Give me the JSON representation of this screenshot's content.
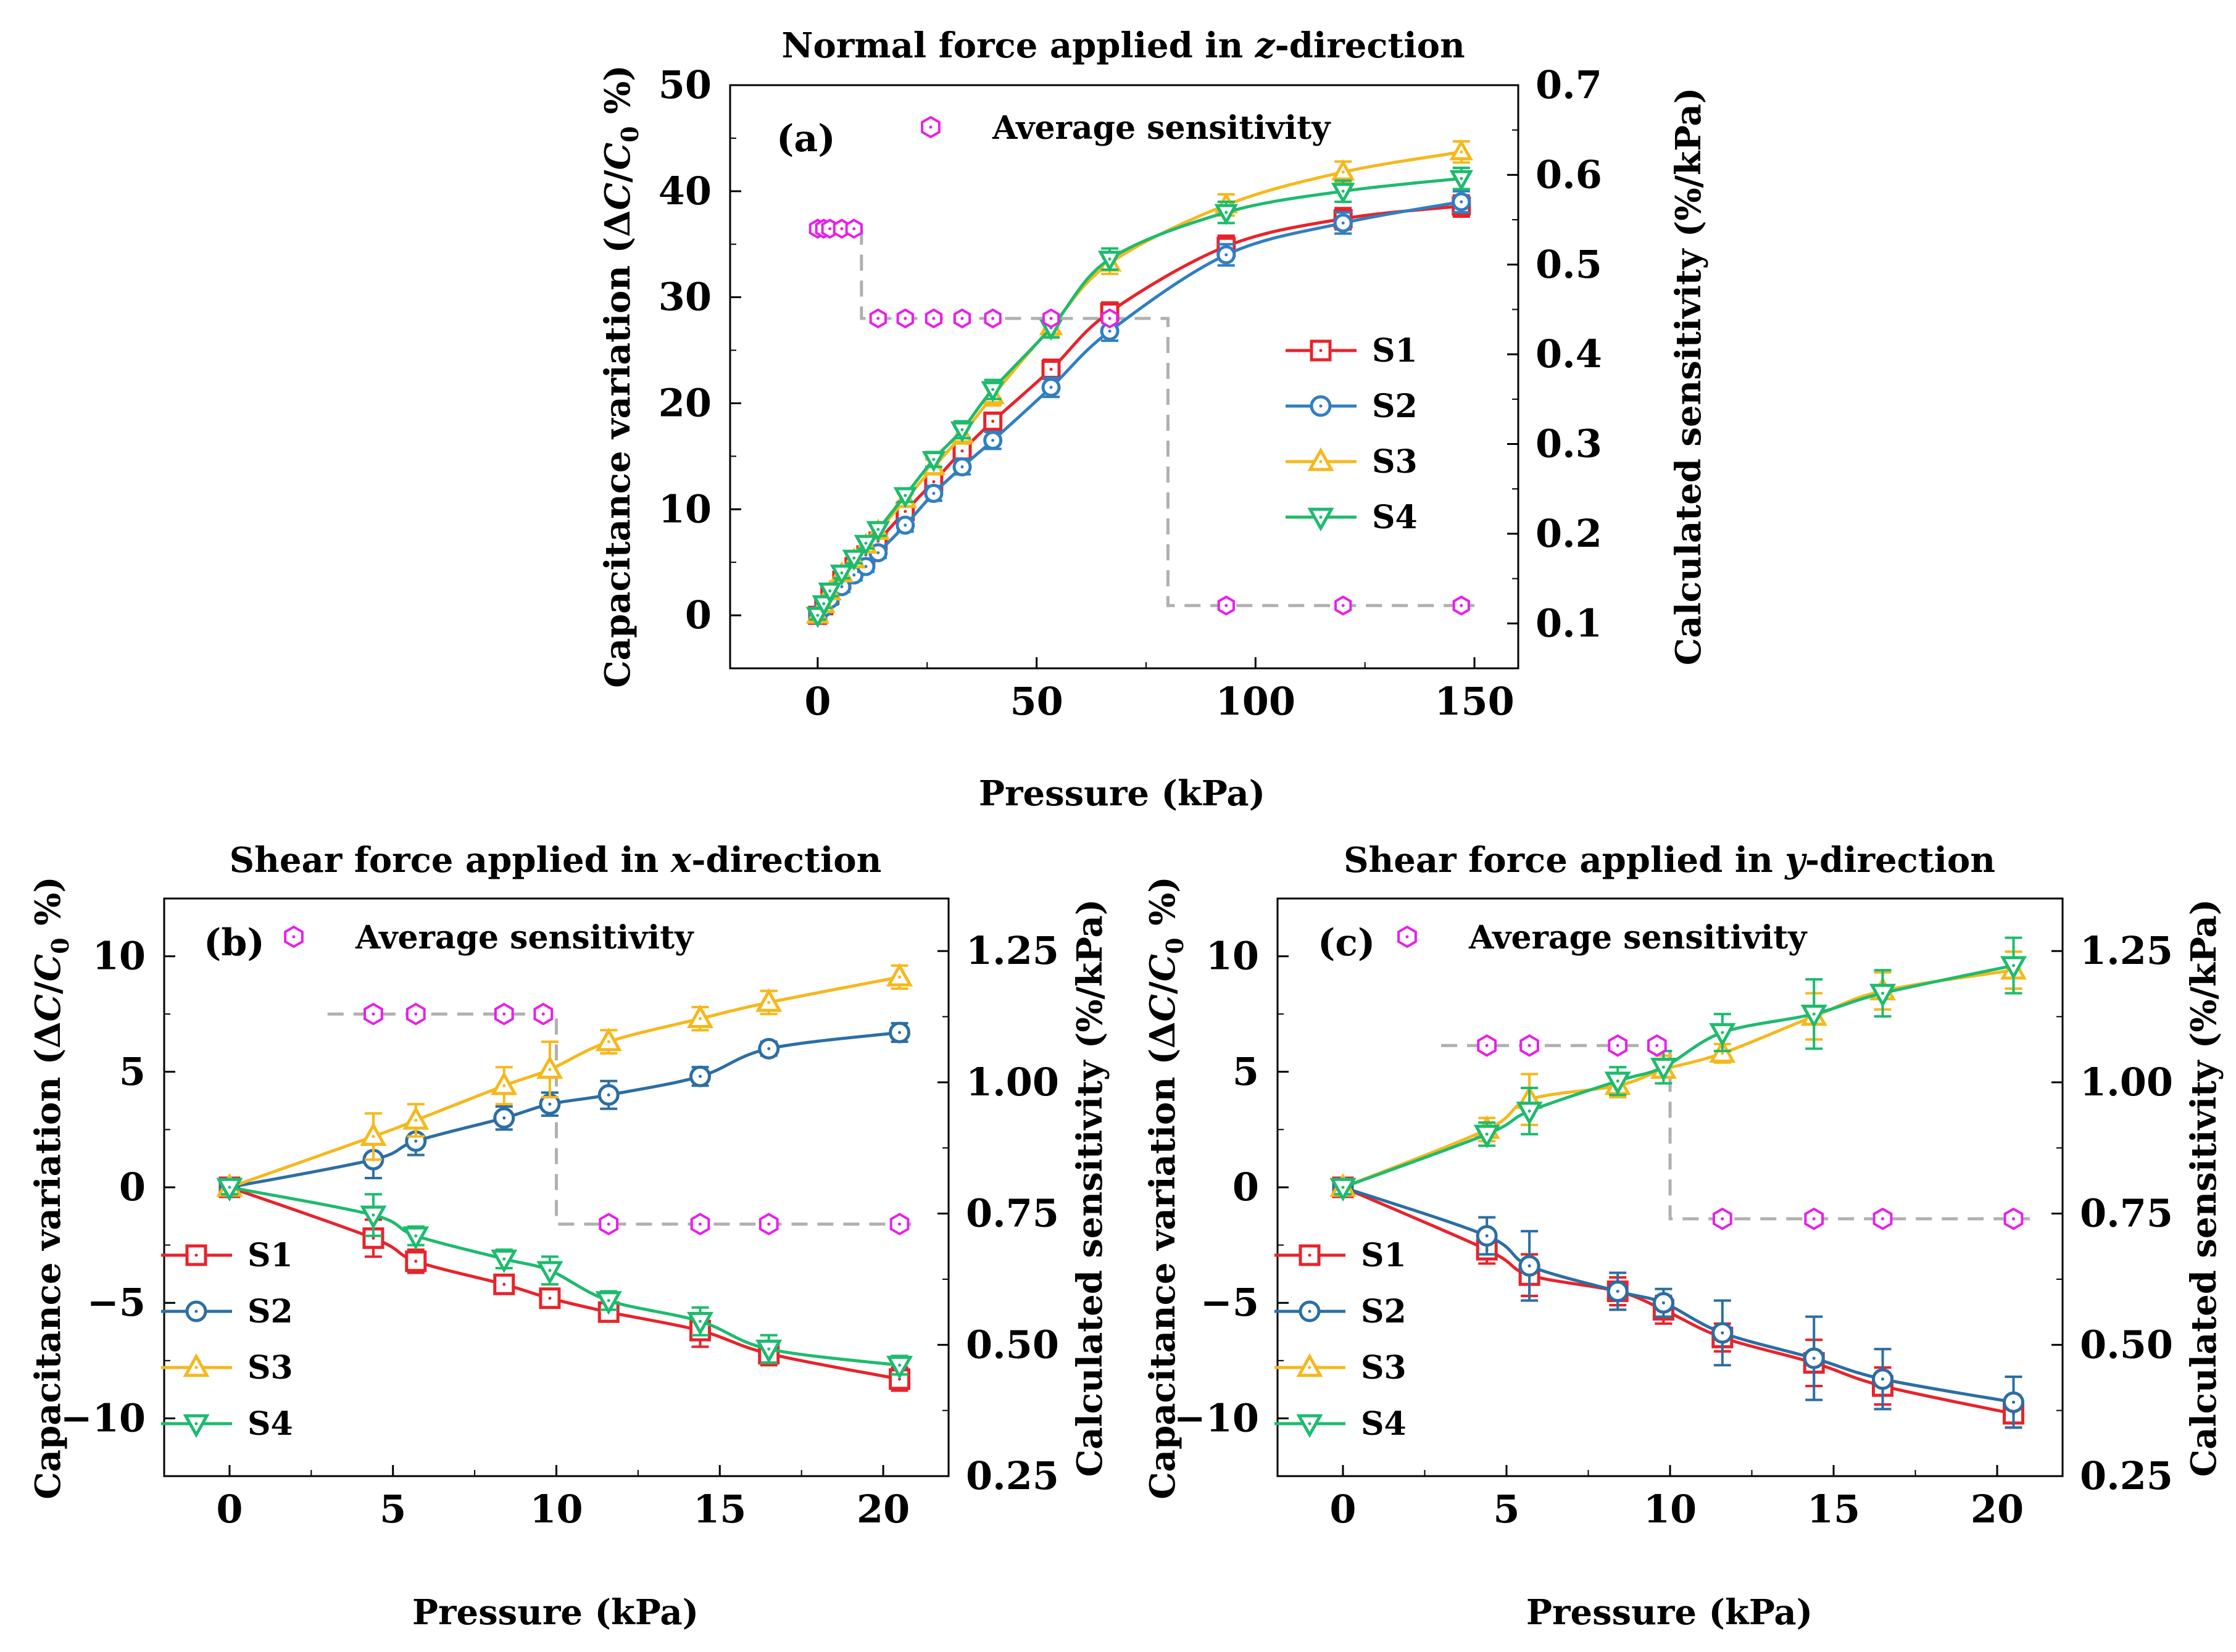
{
  "figure": {
    "panel_count": 3
  },
  "colors": {
    "S1": "#e8232b",
    "S2": "#2c6ea3",
    "S2a": "#2f7fc1",
    "S3": "#f5b81c",
    "S4": "#1dbb6e",
    "sensitivity": "#e81fe8",
    "dashed": "#b0b0b0",
    "axis": "#000000"
  },
  "chart_data": [
    {
      "id": "a",
      "type": "line",
      "panel_label": "(a)",
      "title": {
        "prefix": "Normal force applied in ",
        "italic": "z",
        "suffix": "-direction"
      },
      "xlabel": "Pressure (kPa)",
      "ylabel": "Capacitance variation (ΔC/C0 %)",
      "y2label": "Calculated sensitivity (%/kPa)",
      "xlim": [
        -20,
        160
      ],
      "ylim": [
        -5,
        50
      ],
      "y2lim": [
        0.05,
        0.7
      ],
      "xticks": [
        0,
        50,
        100,
        150
      ],
      "xtick_labels": [
        "0",
        "50",
        "100",
        "150"
      ],
      "yticks": [
        0,
        10,
        20,
        30,
        40,
        50
      ],
      "ytick_labels": [
        "0",
        "10",
        "20",
        "30",
        "40",
        "50"
      ],
      "y2ticks": [
        0.1,
        0.2,
        0.3,
        0.4,
        0.5,
        0.6,
        0.7
      ],
      "y2tick_labels": [
        "0.1",
        "0.2",
        "0.3",
        "0.4",
        "0.5",
        "0.6",
        "0.7"
      ],
      "x": [
        0,
        1.4,
        2.8,
        5.5,
        8.3,
        11,
        13.8,
        20,
        26.5,
        33,
        40,
        53.3,
        66.7,
        93.3,
        120,
        147
      ],
      "series": [
        {
          "name": "S1",
          "color_key": "S1",
          "marker": "square",
          "values": [
            0,
            0.9,
            1.9,
            3.3,
            4.6,
            5.7,
            7,
            9.8,
            12.6,
            15.5,
            18.3,
            23.2,
            28.6,
            34.8,
            37.4,
            38.6
          ],
          "errors": [
            0.4,
            0.4,
            0.5,
            0.5,
            0.5,
            0.5,
            0.5,
            0.6,
            0.7,
            0.8,
            0.8,
            0.9,
            0.9,
            1.0,
            1.0,
            1.0
          ]
        },
        {
          "name": "S2",
          "color_key": "S2a",
          "marker": "circle",
          "values": [
            0,
            0.7,
            1.5,
            2.7,
            3.8,
            4.6,
            5.9,
            8.5,
            11.5,
            14,
            16.5,
            21.5,
            26.8,
            34,
            37,
            39
          ],
          "errors": [
            0.4,
            0.4,
            0.5,
            0.5,
            0.5,
            0.5,
            0.5,
            0.6,
            0.7,
            0.7,
            0.8,
            0.9,
            0.9,
            1.0,
            1.0,
            1.0
          ]
        },
        {
          "name": "S3",
          "color_key": "S3",
          "marker": "triangle-up",
          "values": [
            0,
            1,
            2.2,
            3.9,
            5.2,
            6.6,
            7.9,
            10.9,
            14,
            17,
            20.7,
            27.2,
            33.2,
            38.7,
            41.8,
            43.7
          ],
          "errors": [
            0.4,
            0.4,
            0.5,
            0.5,
            0.5,
            0.5,
            0.6,
            0.6,
            0.7,
            0.8,
            0.9,
            0.9,
            1.0,
            1.0,
            1.0,
            1.0
          ]
        },
        {
          "name": "S4",
          "color_key": "S4",
          "marker": "triangle-down",
          "values": [
            0,
            1.1,
            2.3,
            4,
            5.4,
            6.8,
            8.1,
            11.3,
            14.7,
            17.5,
            21.3,
            27.1,
            33.6,
            38,
            40,
            41.2
          ],
          "errors": [
            0.4,
            0.4,
            0.5,
            0.5,
            0.5,
            0.5,
            0.6,
            0.6,
            0.7,
            0.8,
            0.9,
            0.9,
            1.0,
            1.0,
            1.0,
            1.0
          ]
        }
      ],
      "sensitivity": {
        "label": "Average sensitivity",
        "x": [
          0,
          1.4,
          2.8,
          5.5,
          8.3,
          13.8,
          20,
          26.5,
          33,
          40,
          53.3,
          66.7,
          93.3,
          120,
          147
        ],
        "values": [
          0.54,
          0.54,
          0.54,
          0.54,
          0.54,
          0.44,
          0.44,
          0.44,
          0.44,
          0.44,
          0.44,
          0.44,
          0.12,
          0.12,
          0.12
        ],
        "step_path": [
          [
            10,
            0.54
          ],
          [
            10,
            0.44
          ],
          [
            80,
            0.44
          ],
          [
            80,
            0.12
          ],
          [
            150,
            0.12
          ]
        ]
      },
      "legend": {
        "entries": [
          "S1",
          "S2",
          "S3",
          "S4"
        ],
        "placement": "center-right"
      },
      "sens_legend_placement": "top-center"
    },
    {
      "id": "b",
      "type": "line",
      "panel_label": "(b)",
      "title": {
        "prefix": "Shear force applied in ",
        "italic": "x",
        "suffix": "-direction"
      },
      "xlabel": "Pressure (kPa)",
      "ylabel": "Capacitance variation (ΔC/C0 %)",
      "y2label": "Calculated sensitivity (%/kPa)",
      "xlim": [
        -2,
        22
      ],
      "ylim": [
        -12.5,
        12.5
      ],
      "y2lim": [
        0.25,
        1.35
      ],
      "xticks": [
        0,
        5,
        10,
        15,
        20
      ],
      "xtick_labels": [
        "0",
        "5",
        "10",
        "15",
        "20"
      ],
      "yticks": [
        -10,
        -5,
        0,
        5,
        10
      ],
      "ytick_labels": [
        "−10",
        "−5",
        "0",
        "5",
        "10"
      ],
      "y2ticks": [
        0.25,
        0.5,
        0.75,
        1.0,
        1.25
      ],
      "y2tick_labels": [
        "0.25",
        "0.50",
        "0.75",
        "1.00",
        "1.25"
      ],
      "x": [
        0,
        4.4,
        5.7,
        8.4,
        9.8,
        11.6,
        14.4,
        16.5,
        20.5
      ],
      "series": [
        {
          "name": "S1",
          "color_key": "S1",
          "marker": "square",
          "values": [
            0,
            -2.2,
            -3.2,
            -4.2,
            -4.8,
            -5.4,
            -6.2,
            -7.2,
            -8.3
          ],
          "errors": [
            0.3,
            0.8,
            0.5,
            0.3,
            0.4,
            0.4,
            0.7,
            0.5,
            0.5
          ]
        },
        {
          "name": "S2",
          "color_key": "S2",
          "marker": "circle",
          "values": [
            0,
            1.2,
            2.0,
            3.0,
            3.6,
            4.0,
            4.8,
            6.0,
            6.7
          ],
          "errors": [
            0.3,
            0.8,
            0.6,
            0.5,
            0.5,
            0.6,
            0.4,
            0.3,
            0.4
          ]
        },
        {
          "name": "S3",
          "color_key": "S3",
          "marker": "triangle-up",
          "values": [
            0,
            2.2,
            2.9,
            4.4,
            5.1,
            6.3,
            7.3,
            8.0,
            9.1
          ],
          "errors": [
            0.3,
            1.0,
            0.7,
            0.8,
            1.2,
            0.5,
            0.5,
            0.5,
            0.5
          ]
        },
        {
          "name": "S4",
          "color_key": "S4",
          "marker": "triangle-down",
          "values": [
            0,
            -1.2,
            -2.1,
            -3.1,
            -3.6,
            -4.9,
            -5.8,
            -7.0,
            -7.7
          ],
          "errors": [
            0.3,
            0.9,
            0.4,
            0.4,
            0.6,
            0.4,
            0.6,
            0.6,
            0.4
          ]
        }
      ],
      "sensitivity": {
        "label": "Average sensitivity",
        "x": [
          4.4,
          5.7,
          8.4,
          9.6,
          11.6,
          14.4,
          16.5,
          20.5
        ],
        "values": [
          1.13,
          1.13,
          1.13,
          1.13,
          0.73,
          0.73,
          0.73,
          0.73
        ],
        "step_path": [
          [
            3,
            1.13
          ],
          [
            10,
            1.13
          ],
          [
            10,
            0.73
          ],
          [
            21,
            0.73
          ]
        ]
      },
      "legend": {
        "entries": [
          "S1",
          "S2",
          "S3",
          "S4"
        ],
        "placement": "bottom-left"
      },
      "sens_legend_placement": "top-left"
    },
    {
      "id": "c",
      "type": "line",
      "panel_label": "(c)",
      "title": {
        "prefix": "Shear force applied in ",
        "italic": "y",
        "suffix": "-direction"
      },
      "xlabel": "Pressure (kPa)",
      "ylabel": "Capacitance variation (ΔC/C0 %)",
      "y2label": "Calculated sensitivity (%/kPa)",
      "xlim": [
        -2,
        22
      ],
      "ylim": [
        -12.5,
        12.5
      ],
      "y2lim": [
        0.25,
        1.35
      ],
      "xticks": [
        0,
        5,
        10,
        15,
        20
      ],
      "xtick_labels": [
        "0",
        "5",
        "10",
        "15",
        "20"
      ],
      "yticks": [
        -10,
        -5,
        0,
        5,
        10
      ],
      "ytick_labels": [
        "−10",
        "−5",
        "0",
        "5",
        "10"
      ],
      "y2ticks": [
        0.25,
        0.5,
        0.75,
        1.0,
        1.25
      ],
      "y2tick_labels": [
        "0.25",
        "0.50",
        "0.75",
        "1.00",
        "1.25"
      ],
      "x": [
        0,
        4.4,
        5.7,
        8.4,
        9.8,
        11.6,
        14.4,
        16.5,
        20.5
      ],
      "series": [
        {
          "name": "S1",
          "color_key": "S1",
          "marker": "square",
          "values": [
            0,
            -2.7,
            -3.8,
            -4.5,
            -5.3,
            -6.5,
            -7.6,
            -8.6,
            -9.8
          ],
          "errors": [
            0.3,
            0.6,
            0.9,
            0.6,
            0.6,
            0.6,
            1.0,
            0.8,
            0.6
          ]
        },
        {
          "name": "S2",
          "color_key": "S2",
          "marker": "circle",
          "values": [
            0,
            -2.1,
            -3.4,
            -4.5,
            -5.0,
            -6.3,
            -7.4,
            -8.3,
            -9.3
          ],
          "errors": [
            0.3,
            0.8,
            1.5,
            0.8,
            0.6,
            1.4,
            1.8,
            1.3,
            1.1
          ]
        },
        {
          "name": "S3",
          "color_key": "S3",
          "marker": "triangle-up",
          "values": [
            0,
            2.5,
            3.8,
            4.4,
            5.1,
            5.8,
            7.4,
            8.5,
            9.4
          ],
          "errors": [
            0.3,
            0.5,
            1.1,
            0.5,
            0.6,
            0.4,
            1.0,
            0.8,
            0.8
          ]
        },
        {
          "name": "S4",
          "color_key": "S4",
          "marker": "triangle-down",
          "values": [
            0,
            2.3,
            3.3,
            4.6,
            5.2,
            6.7,
            7.5,
            8.4,
            9.6
          ],
          "errors": [
            0.3,
            0.5,
            1.0,
            0.6,
            0.7,
            0.8,
            1.5,
            1.0,
            1.2
          ]
        }
      ],
      "sensitivity": {
        "label": "Average sensitivity",
        "x": [
          4.4,
          5.7,
          8.4,
          9.6,
          11.6,
          14.4,
          16.5,
          20.5
        ],
        "values": [
          1.07,
          1.07,
          1.07,
          1.07,
          0.74,
          0.74,
          0.74,
          0.74
        ],
        "step_path": [
          [
            3,
            1.07
          ],
          [
            10,
            1.07
          ],
          [
            10,
            0.74
          ],
          [
            21,
            0.74
          ]
        ]
      },
      "legend": {
        "entries": [
          "S1",
          "S2",
          "S3",
          "S4"
        ],
        "placement": "bottom-left"
      },
      "sens_legend_placement": "top-left"
    }
  ]
}
